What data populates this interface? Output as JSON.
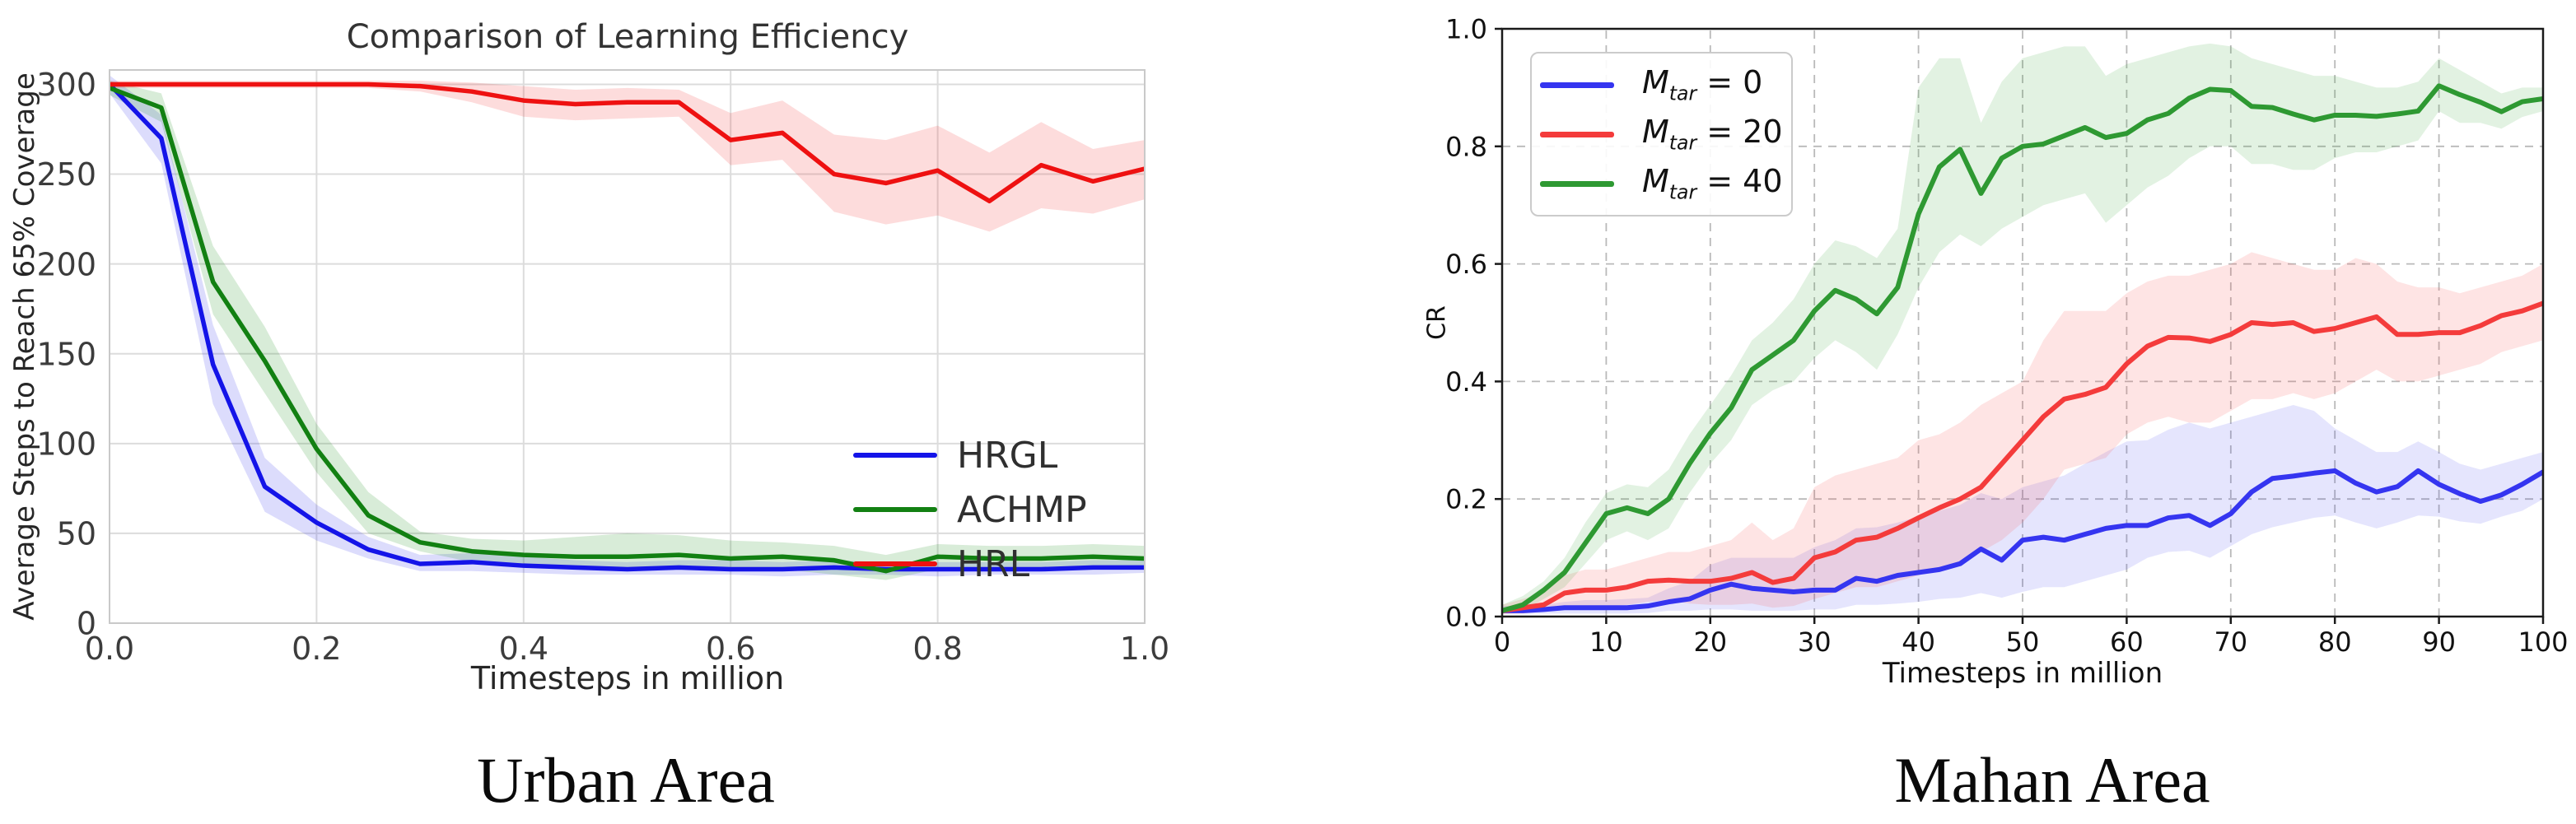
{
  "chart_data": [
    {
      "type": "line",
      "panel": "left",
      "title": "Comparison of Learning Efficiency",
      "caption": "Urban Area",
      "xlabel": "Timesteps in million",
      "ylabel": "Average Steps to Reach 65% Coverage",
      "xlim": [
        0,
        1.0
      ],
      "ylim": [
        0,
        308
      ],
      "grid": "solid",
      "legend_position": "center-right",
      "legend_frame": false,
      "xticks": [
        "0.0",
        "0.2",
        "0.4",
        "0.6",
        "0.8",
        "1.0"
      ],
      "xtick_values": [
        0,
        0.2,
        0.4,
        0.6,
        0.8,
        1.0
      ],
      "yticks": [
        "0",
        "50",
        "100",
        "150",
        "200",
        "250",
        "300"
      ],
      "ytick_values": [
        0,
        50,
        100,
        150,
        200,
        250,
        300
      ],
      "x": [
        0,
        0.05,
        0.1,
        0.15,
        0.2,
        0.25,
        0.3,
        0.35,
        0.4,
        0.45,
        0.5,
        0.55,
        0.6,
        0.65,
        0.7,
        0.75,
        0.8,
        0.85,
        0.9,
        0.95,
        1.0
      ],
      "series": [
        {
          "name": "HRGL",
          "color": "#1414e8",
          "band_color": "rgba(50,50,235,0.17)",
          "values": [
            300,
            270,
            144,
            76,
            56,
            41,
            33,
            34,
            32,
            31,
            30,
            31,
            30,
            30,
            31,
            30,
            30,
            30,
            30,
            31,
            31
          ],
          "lo": [
            295,
            256,
            122,
            62,
            46,
            36,
            29,
            29,
            28,
            27,
            27,
            27,
            27,
            26,
            27,
            27,
            26,
            27,
            27,
            27,
            28
          ],
          "hi": [
            305,
            283,
            166,
            92,
            66,
            48,
            38,
            39,
            37,
            35,
            34,
            35,
            35,
            34,
            35,
            34,
            34,
            34,
            34,
            35,
            35
          ]
        },
        {
          "name": "ACHMP",
          "color": "#128012",
          "band_color": "rgba(40,150,40,0.18)",
          "values": [
            298,
            287,
            190,
            146,
            97,
            60,
            45,
            40,
            38,
            37,
            37,
            38,
            36,
            37,
            35,
            29,
            37,
            36,
            36,
            37,
            36
          ],
          "lo": [
            294,
            279,
            172,
            128,
            84,
            50,
            40,
            34,
            32,
            31,
            30,
            31,
            30,
            30,
            27,
            24,
            30,
            30,
            30,
            31,
            30
          ],
          "hi": [
            302,
            295,
            210,
            165,
            111,
            73,
            51,
            47,
            46,
            48,
            50,
            49,
            46,
            45,
            43,
            38,
            44,
            43,
            43,
            44,
            43
          ]
        },
        {
          "name": "HRL",
          "color": "#ee1111",
          "band_color": "rgba(245,60,60,0.18)",
          "values": [
            300,
            300,
            300,
            300,
            300,
            300,
            299,
            296,
            291,
            289,
            290,
            290,
            269,
            273,
            250,
            245,
            252,
            235,
            255,
            246,
            253
          ],
          "lo": [
            298,
            298,
            298,
            298,
            298,
            298,
            296,
            290,
            282,
            280,
            281,
            282,
            255,
            258,
            229,
            222,
            227,
            218,
            231,
            228,
            236
          ],
          "hi": [
            302,
            302,
            302,
            302,
            302,
            302,
            302,
            301,
            299,
            297,
            298,
            297,
            284,
            291,
            272,
            269,
            277,
            262,
            279,
            264,
            269
          ]
        }
      ]
    },
    {
      "type": "line",
      "panel": "right",
      "title": "",
      "caption": "Mahan Area",
      "xlabel": "Timesteps in million",
      "ylabel": "CR",
      "xlim": [
        0,
        100
      ],
      "ylim": [
        0,
        1.0
      ],
      "grid": "dashed",
      "legend_position": "upper-left",
      "legend_frame": true,
      "xticks": [
        "0",
        "10",
        "20",
        "30",
        "40",
        "50",
        "60",
        "70",
        "80",
        "90",
        "100"
      ],
      "xtick_values": [
        0,
        10,
        20,
        30,
        40,
        50,
        60,
        70,
        80,
        90,
        100
      ],
      "yticks": [
        "0.0",
        "0.2",
        "0.4",
        "0.6",
        "0.8",
        "1.0"
      ],
      "ytick_values": [
        0,
        0.2,
        0.4,
        0.6,
        0.8,
        1.0
      ],
      "x": [
        0,
        2,
        4,
        6,
        8,
        10,
        12,
        14,
        16,
        18,
        20,
        22,
        24,
        26,
        28,
        30,
        32,
        34,
        36,
        38,
        40,
        42,
        44,
        46,
        48,
        50,
        52,
        54,
        56,
        58,
        60,
        62,
        64,
        66,
        68,
        70,
        72,
        74,
        76,
        78,
        80,
        82,
        84,
        86,
        88,
        90,
        92,
        94,
        96,
        98,
        100
      ],
      "series": [
        {
          "name": "M_tar = 0",
          "math": {
            "var": "M",
            "sub": "tar",
            "rhs": "= 0"
          },
          "color": "#3535f0",
          "band_color": "rgba(70,70,240,0.14)",
          "values": [
            0.01,
            0.01,
            0.012,
            0.015,
            0.015,
            0.015,
            0.015,
            0.018,
            0.025,
            0.03,
            0.045,
            0.055,
            0.048,
            0.045,
            0.042,
            0.045,
            0.045,
            0.065,
            0.06,
            0.07,
            0.075,
            0.08,
            0.09,
            0.115,
            0.096,
            0.13,
            0.135,
            0.13,
            0.14,
            0.15,
            0.155,
            0.155,
            0.168,
            0.172,
            0.155,
            0.175,
            0.212,
            0.235,
            0.239,
            0.244,
            0.248,
            0.227,
            0.212,
            0.221,
            0.248,
            0.225,
            0.209,
            0.196,
            0.207,
            0.225,
            0.246
          ],
          "lo": [
            0.005,
            0.005,
            0.005,
            0.005,
            0.005,
            0.005,
            0.005,
            0.006,
            0.01,
            0.01,
            0.012,
            0.012,
            0.01,
            0.01,
            0.01,
            0.012,
            0.012,
            0.02,
            0.02,
            0.022,
            0.025,
            0.03,
            0.032,
            0.04,
            0.032,
            0.042,
            0.05,
            0.05,
            0.06,
            0.07,
            0.08,
            0.1,
            0.11,
            0.112,
            0.1,
            0.12,
            0.14,
            0.152,
            0.16,
            0.168,
            0.172,
            0.16,
            0.15,
            0.16,
            0.172,
            0.17,
            0.162,
            0.158,
            0.17,
            0.18,
            0.2
          ],
          "hi": [
            0.018,
            0.018,
            0.02,
            0.025,
            0.028,
            0.028,
            0.03,
            0.032,
            0.048,
            0.06,
            0.088,
            0.1,
            0.1,
            0.1,
            0.1,
            0.118,
            0.13,
            0.15,
            0.152,
            0.16,
            0.17,
            0.18,
            0.19,
            0.21,
            0.2,
            0.22,
            0.23,
            0.24,
            0.26,
            0.28,
            0.298,
            0.3,
            0.318,
            0.33,
            0.32,
            0.33,
            0.34,
            0.35,
            0.36,
            0.35,
            0.32,
            0.3,
            0.28,
            0.28,
            0.298,
            0.28,
            0.26,
            0.25,
            0.26,
            0.27,
            0.28
          ]
        },
        {
          "name": "M_tar = 20",
          "math": {
            "var": "M",
            "sub": "tar",
            "rhs": "= 20"
          },
          "color": "#f43b3b",
          "band_color": "rgba(250,90,90,0.16)",
          "values": [
            0.01,
            0.015,
            0.02,
            0.04,
            0.045,
            0.045,
            0.05,
            0.06,
            0.062,
            0.06,
            0.06,
            0.065,
            0.075,
            0.058,
            0.065,
            0.1,
            0.11,
            0.13,
            0.135,
            0.15,
            0.168,
            0.185,
            0.2,
            0.22,
            0.26,
            0.3,
            0.34,
            0.37,
            0.378,
            0.39,
            0.43,
            0.46,
            0.475,
            0.474,
            0.468,
            0.48,
            0.5,
            0.497,
            0.5,
            0.485,
            0.49,
            0.5,
            0.51,
            0.48,
            0.48,
            0.483,
            0.483,
            0.495,
            0.512,
            0.52,
            0.533
          ],
          "lo": [
            0.004,
            0.005,
            0.008,
            0.015,
            0.018,
            0.018,
            0.02,
            0.025,
            0.028,
            0.022,
            0.02,
            0.02,
            0.022,
            0.015,
            0.018,
            0.03,
            0.04,
            0.05,
            0.05,
            0.06,
            0.07,
            0.08,
            0.09,
            0.11,
            0.13,
            0.16,
            0.2,
            0.25,
            0.26,
            0.27,
            0.31,
            0.33,
            0.34,
            0.33,
            0.33,
            0.35,
            0.37,
            0.37,
            0.38,
            0.37,
            0.38,
            0.4,
            0.42,
            0.4,
            0.4,
            0.41,
            0.42,
            0.43,
            0.45,
            0.46,
            0.47
          ],
          "hi": [
            0.02,
            0.03,
            0.04,
            0.07,
            0.08,
            0.08,
            0.09,
            0.1,
            0.11,
            0.11,
            0.12,
            0.13,
            0.16,
            0.13,
            0.15,
            0.22,
            0.24,
            0.25,
            0.26,
            0.27,
            0.3,
            0.31,
            0.33,
            0.36,
            0.38,
            0.4,
            0.47,
            0.52,
            0.52,
            0.52,
            0.55,
            0.57,
            0.58,
            0.58,
            0.59,
            0.6,
            0.62,
            0.61,
            0.6,
            0.59,
            0.59,
            0.61,
            0.6,
            0.57,
            0.56,
            0.56,
            0.55,
            0.56,
            0.57,
            0.58,
            0.6
          ]
        },
        {
          "name": "M_tar = 40",
          "math": {
            "var": "M",
            "sub": "tar",
            "rhs": "= 40"
          },
          "color": "#2e9932",
          "band_color": "rgba(60,170,60,0.15)",
          "values": [
            0.01,
            0.02,
            0.045,
            0.075,
            0.125,
            0.175,
            0.185,
            0.175,
            0.2,
            0.26,
            0.312,
            0.355,
            0.42,
            0.445,
            0.47,
            0.52,
            0.555,
            0.54,
            0.515,
            0.56,
            0.685,
            0.765,
            0.795,
            0.72,
            0.78,
            0.8,
            0.804,
            0.818,
            0.832,
            0.815,
            0.822,
            0.845,
            0.856,
            0.882,
            0.897,
            0.895,
            0.868,
            0.866,
            0.855,
            0.845,
            0.853,
            0.853,
            0.851,
            0.855,
            0.86,
            0.903,
            0.888,
            0.875,
            0.859,
            0.876,
            0.881
          ],
          "lo": [
            0.005,
            0.01,
            0.03,
            0.05,
            0.09,
            0.13,
            0.145,
            0.13,
            0.15,
            0.21,
            0.26,
            0.3,
            0.36,
            0.385,
            0.4,
            0.44,
            0.47,
            0.45,
            0.42,
            0.48,
            0.56,
            0.62,
            0.65,
            0.63,
            0.66,
            0.68,
            0.7,
            0.71,
            0.72,
            0.67,
            0.7,
            0.73,
            0.75,
            0.78,
            0.8,
            0.8,
            0.77,
            0.77,
            0.76,
            0.76,
            0.78,
            0.79,
            0.79,
            0.8,
            0.81,
            0.86,
            0.84,
            0.84,
            0.83,
            0.85,
            0.86
          ],
          "hi": [
            0.02,
            0.035,
            0.06,
            0.1,
            0.16,
            0.21,
            0.225,
            0.22,
            0.25,
            0.31,
            0.36,
            0.41,
            0.47,
            0.5,
            0.54,
            0.6,
            0.64,
            0.63,
            0.61,
            0.66,
            0.9,
            0.95,
            0.95,
            0.84,
            0.91,
            0.95,
            0.96,
            0.97,
            0.97,
            0.92,
            0.94,
            0.95,
            0.96,
            0.97,
            0.975,
            0.97,
            0.95,
            0.94,
            0.93,
            0.92,
            0.92,
            0.91,
            0.9,
            0.9,
            0.91,
            0.95,
            0.93,
            0.91,
            0.89,
            0.9,
            0.9
          ]
        }
      ]
    }
  ]
}
